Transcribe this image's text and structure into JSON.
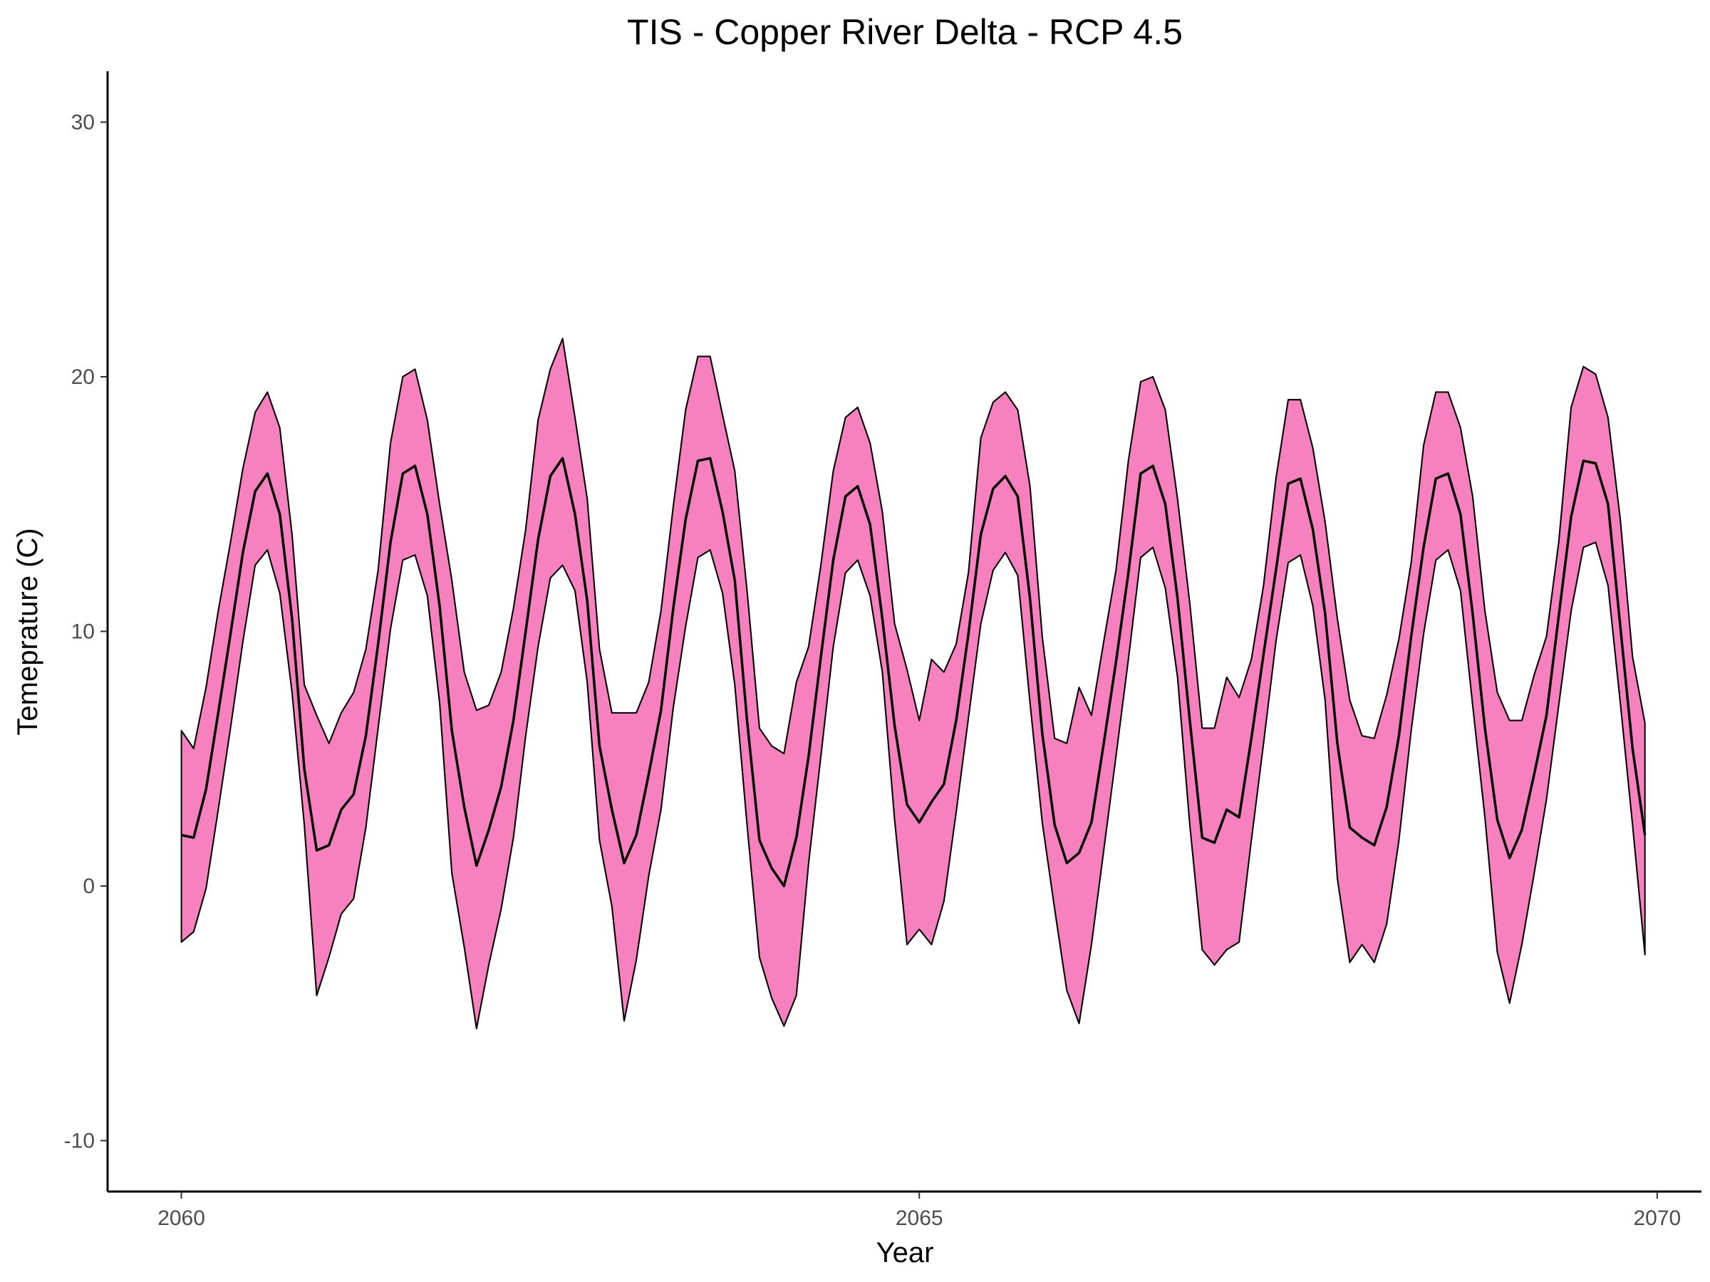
{
  "chart_data": {
    "type": "area",
    "title": "TIS - Copper River Delta - RCP 4.5",
    "xlabel": "Year",
    "ylabel": "Temeprature (C)",
    "xlim": [
      2059.5,
      2070.3
    ],
    "ylim": [
      -12,
      32
    ],
    "xticks": [
      2060,
      2065,
      2070
    ],
    "yticks": [
      -10,
      0,
      10,
      20,
      30
    ],
    "grid": false,
    "legend": "none",
    "colors": {
      "band_fill": "#F781BF",
      "line": "#000000"
    },
    "series": [
      {
        "x": [
          2060.0,
          2060.083,
          2060.167,
          2060.25,
          2060.333,
          2060.417,
          2060.5,
          2060.583,
          2060.667,
          2060.75,
          2060.833,
          2060.917,
          2061.0,
          2061.083,
          2061.167,
          2061.25,
          2061.333,
          2061.417,
          2061.5,
          2061.583,
          2061.667,
          2061.75,
          2061.833,
          2061.917,
          2062.0,
          2062.083,
          2062.167,
          2062.25,
          2062.333,
          2062.417,
          2062.5,
          2062.583,
          2062.667,
          2062.75,
          2062.833,
          2062.917,
          2063.0,
          2063.083,
          2063.167,
          2063.25,
          2063.333,
          2063.417,
          2063.5,
          2063.583,
          2063.667,
          2063.75,
          2063.833,
          2063.917,
          2064.0,
          2064.083,
          2064.167,
          2064.25,
          2064.333,
          2064.417,
          2064.5,
          2064.583,
          2064.667,
          2064.75,
          2064.833,
          2064.917,
          2065.0,
          2065.083,
          2065.167,
          2065.25,
          2065.333,
          2065.417,
          2065.5,
          2065.583,
          2065.667,
          2065.75,
          2065.833,
          2065.917,
          2066.0,
          2066.083,
          2066.167,
          2066.25,
          2066.333,
          2066.417,
          2066.5,
          2066.583,
          2066.667,
          2066.75,
          2066.833,
          2066.917,
          2067.0,
          2067.083,
          2067.167,
          2067.25,
          2067.333,
          2067.417,
          2067.5,
          2067.583,
          2067.667,
          2067.75,
          2067.833,
          2067.917,
          2068.0,
          2068.083,
          2068.167,
          2068.25,
          2068.333,
          2068.417,
          2068.5,
          2068.583,
          2068.667,
          2068.75,
          2068.833,
          2068.917,
          2069.0,
          2069.083,
          2069.167,
          2069.25,
          2069.333,
          2069.417,
          2069.5,
          2069.583,
          2069.667,
          2069.75,
          2069.833,
          2069.917
        ],
        "upper": [
          6.1,
          5.4,
          7.8,
          10.8,
          13.5,
          16.4,
          18.6,
          19.4,
          18.0,
          13.8,
          7.9,
          6.7,
          5.6,
          6.8,
          7.6,
          9.3,
          12.4,
          17.4,
          20.0,
          20.3,
          18.3,
          15.0,
          12.0,
          8.4,
          6.9,
          7.1,
          8.4,
          10.9,
          14.0,
          18.3,
          20.3,
          21.5,
          18.4,
          15.2,
          9.3,
          6.8,
          6.8,
          6.8,
          8.0,
          10.8,
          14.9,
          18.7,
          20.8,
          20.8,
          18.5,
          16.3,
          11.6,
          6.2,
          5.5,
          5.2,
          8.0,
          9.4,
          12.6,
          16.3,
          18.4,
          18.8,
          17.4,
          14.7,
          10.3,
          8.5,
          6.5,
          8.9,
          8.4,
          9.5,
          12.3,
          17.6,
          19.0,
          19.4,
          18.7,
          15.7,
          9.8,
          5.8,
          5.6,
          7.8,
          6.7,
          9.6,
          12.4,
          16.7,
          19.8,
          20.0,
          18.7,
          15.2,
          11.1,
          6.2,
          6.2,
          8.2,
          7.4,
          8.9,
          11.8,
          16.0,
          19.1,
          19.1,
          17.2,
          14.3,
          10.5,
          7.3,
          5.9,
          5.8,
          7.5,
          9.7,
          12.7,
          17.3,
          19.4,
          19.4,
          18.0,
          15.3,
          10.8,
          7.6,
          6.5,
          6.5,
          8.3,
          9.8,
          13.5,
          18.8,
          20.4,
          20.1,
          18.4,
          14.4,
          9.0,
          6.4
        ],
        "mean": [
          2.0,
          1.9,
          3.8,
          6.8,
          9.9,
          13.1,
          15.5,
          16.2,
          14.6,
          10.5,
          4.6,
          1.4,
          1.6,
          3.0,
          3.6,
          5.9,
          9.5,
          13.5,
          16.2,
          16.5,
          14.6,
          11.0,
          6.1,
          3.1,
          0.8,
          2.2,
          3.9,
          6.5,
          10.0,
          13.6,
          16.1,
          16.8,
          14.6,
          11.2,
          5.5,
          3.0,
          0.9,
          2.0,
          4.4,
          6.9,
          10.9,
          14.4,
          16.7,
          16.8,
          14.7,
          12.0,
          6.5,
          1.8,
          0.7,
          0.0,
          1.9,
          5.1,
          9.0,
          12.8,
          15.3,
          15.7,
          14.2,
          10.5,
          6.3,
          3.2,
          2.5,
          3.3,
          4.0,
          6.5,
          9.9,
          13.8,
          15.6,
          16.1,
          15.3,
          11.3,
          6.0,
          2.4,
          0.9,
          1.3,
          2.5,
          5.6,
          8.8,
          12.3,
          16.2,
          16.5,
          15.0,
          11.3,
          6.5,
          1.9,
          1.7,
          3.0,
          2.7,
          5.8,
          9.1,
          12.4,
          15.8,
          16.0,
          14.0,
          10.7,
          5.6,
          2.3,
          1.9,
          1.6,
          3.1,
          5.9,
          9.8,
          13.3,
          16.0,
          16.2,
          14.6,
          10.7,
          6.2,
          2.6,
          1.1,
          2.2,
          4.4,
          6.7,
          10.6,
          14.5,
          16.7,
          16.6,
          15.0,
          10.2,
          5.4,
          2.0
        ],
        "lower": [
          -2.2,
          -1.8,
          -0.1,
          3.0,
          6.2,
          9.6,
          12.6,
          13.2,
          11.5,
          7.6,
          2.4,
          -4.3,
          -2.8,
          -1.1,
          -0.5,
          2.3,
          6.2,
          10.1,
          12.8,
          13.0,
          11.4,
          7.2,
          0.5,
          -2.4,
          -5.6,
          -3.1,
          -0.9,
          1.9,
          5.9,
          9.4,
          12.1,
          12.6,
          11.6,
          8.0,
          1.8,
          -0.8,
          -5.3,
          -2.9,
          0.4,
          3.0,
          7.0,
          10.2,
          12.9,
          13.2,
          11.5,
          7.9,
          2.4,
          -2.8,
          -4.4,
          -5.5,
          -4.3,
          0.9,
          5.1,
          9.4,
          12.3,
          12.8,
          11.4,
          8.4,
          2.6,
          -2.3,
          -1.7,
          -2.3,
          -0.6,
          2.9,
          6.6,
          10.3,
          12.4,
          13.1,
          12.2,
          7.2,
          2.5,
          -0.9,
          -4.1,
          -5.4,
          -2.3,
          1.4,
          5.1,
          8.9,
          12.9,
          13.3,
          11.7,
          8.2,
          2.4,
          -2.5,
          -3.1,
          -2.5,
          -2.2,
          1.8,
          5.6,
          9.6,
          12.7,
          13.0,
          11.0,
          7.3,
          0.3,
          -3.0,
          -2.3,
          -3.0,
          -1.5,
          1.8,
          6.1,
          9.9,
          12.8,
          13.2,
          11.6,
          7.1,
          2.7,
          -2.6,
          -4.6,
          -2.3,
          0.5,
          3.4,
          7.1,
          10.8,
          13.3,
          13.5,
          11.8,
          7.2,
          2.4,
          -2.7
        ]
      }
    ]
  }
}
